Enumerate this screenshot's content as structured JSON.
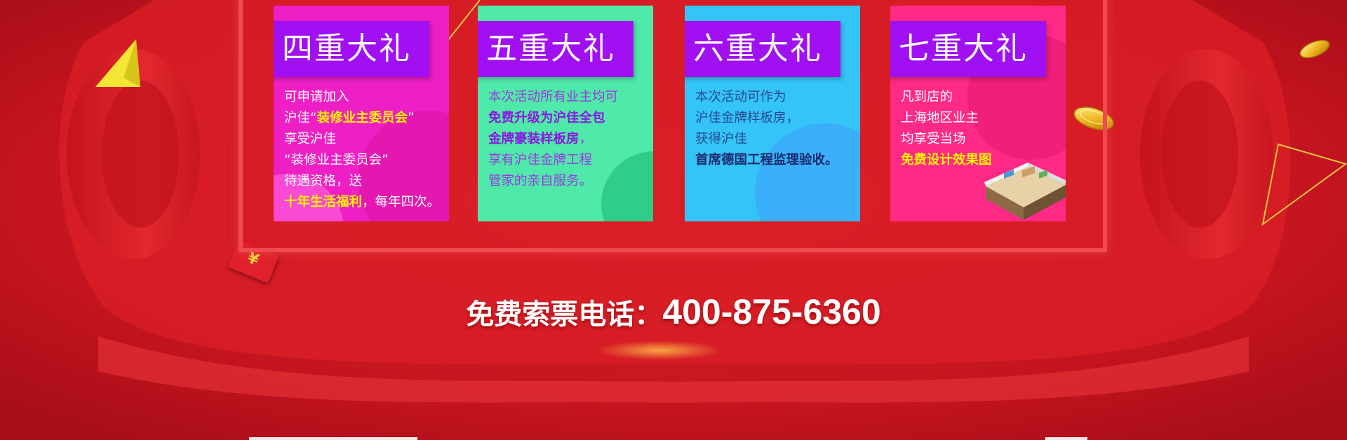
{
  "cards": [
    {
      "title": "四重大礼",
      "lines": [
        {
          "segments": [
            {
              "text": "可申请加入",
              "style": ""
            }
          ]
        },
        {
          "segments": [
            {
              "text": "沪佳“",
              "style": ""
            },
            {
              "text": "装修业主委员会",
              "style": "hl-yellow"
            },
            {
              "text": "”",
              "style": ""
            }
          ]
        },
        {
          "segments": [
            {
              "text": " 享受沪佳",
              "style": ""
            }
          ]
        },
        {
          "segments": [
            {
              "text": " “装修业主委员会”",
              "style": ""
            }
          ]
        },
        {
          "segments": [
            {
              "text": "待遇资格，送",
              "style": ""
            }
          ]
        },
        {
          "segments": [
            {
              "text": "十年生活福利",
              "style": "hl-yellow"
            },
            {
              "text": "，每年四次。",
              "style": ""
            }
          ]
        }
      ]
    },
    {
      "title": "五重大礼",
      "lines": [
        {
          "segments": [
            {
              "text": "本次活动所有业主均可",
              "style": ""
            }
          ]
        },
        {
          "segments": [
            {
              "text": "免费升级为沪佳全包",
              "style": "hl-purple"
            }
          ]
        },
        {
          "segments": [
            {
              "text": "金牌豪装样板房",
              "style": "hl-purple"
            },
            {
              "text": "，",
              "style": ""
            }
          ]
        },
        {
          "segments": [
            {
              "text": "享有沪佳金牌工程",
              "style": ""
            }
          ]
        },
        {
          "segments": [
            {
              "text": "管家的亲自服务。",
              "style": ""
            }
          ]
        }
      ]
    },
    {
      "title": "六重大礼",
      "lines": [
        {
          "segments": [
            {
              "text": "本次活动可作为",
              "style": ""
            }
          ]
        },
        {
          "segments": [
            {
              "text": "沪佳金牌样板房，",
              "style": ""
            }
          ]
        },
        {
          "segments": [
            {
              "text": "获得沪佳",
              "style": ""
            }
          ]
        },
        {
          "segments": [
            {
              "text": "首席德国工程监理验收。",
              "style": "hl-navy"
            }
          ]
        }
      ]
    },
    {
      "title": "七重大礼",
      "lines": [
        {
          "segments": [
            {
              "text": "凡到店的",
              "style": ""
            }
          ]
        },
        {
          "segments": [
            {
              "text": "上海地区业主",
              "style": ""
            }
          ]
        },
        {
          "segments": [
            {
              "text": "均享受当场",
              "style": ""
            }
          ]
        },
        {
          "segments": [
            {
              "text": "免费设计效果图",
              "style": "hl-yellow"
            }
          ]
        }
      ]
    }
  ],
  "phone": {
    "label": "免费索票电话：",
    "number": "400-875-6360"
  },
  "red_packet_symbol": "¥",
  "colors": {
    "background": "#b3111c",
    "card1": "#ee1fc4",
    "card2": "#4fe9a9",
    "card3": "#35c4f7",
    "card4": "#ff2a86",
    "title_tag": "#a010f2",
    "highlight_yellow": "#fff200"
  },
  "icons": [
    "red-envelope-icon",
    "gold-coin-icon",
    "yellow-triangle-icon",
    "triangle-outline-icon",
    "house-model-icon"
  ]
}
